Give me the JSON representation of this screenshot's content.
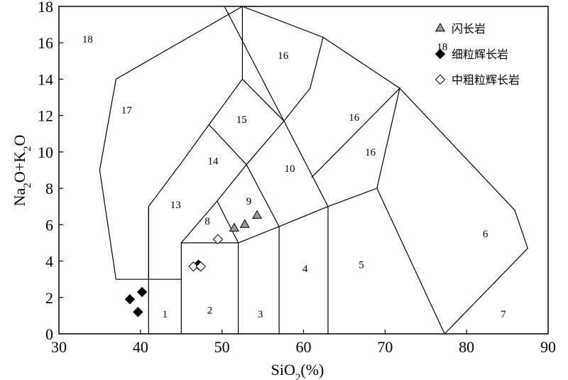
{
  "chart_data": {
    "type": "scatter",
    "xlabel": "SiO2(%)",
    "ylabel": "Na2O+K2O",
    "xlim": [
      30,
      90
    ],
    "ylim": [
      0,
      18
    ],
    "x_ticks": [
      30,
      40,
      50,
      60,
      70,
      80,
      90
    ],
    "y_ticks": [
      0,
      2,
      4,
      6,
      8,
      10,
      12,
      14,
      16,
      18
    ],
    "grid": false,
    "legend_position": "top-right",
    "fields": [
      {
        "label": "1",
        "at": [
          43,
          1.1
        ]
      },
      {
        "label": "2",
        "at": [
          48.5,
          1.3
        ]
      },
      {
        "label": "3",
        "at": [
          54.7,
          1.1
        ]
      },
      {
        "label": "4",
        "at": [
          60.2,
          3.6
        ]
      },
      {
        "label": "5",
        "at": [
          67.1,
          3.8
        ]
      },
      {
        "label": "6",
        "at": [
          82.3,
          5.5
        ]
      },
      {
        "label": "7",
        "at": [
          84.5,
          1.1
        ]
      },
      {
        "label": "8",
        "at": [
          48.2,
          6.2
        ]
      },
      {
        "label": "9",
        "at": [
          53.3,
          7.3
        ]
      },
      {
        "label": "10",
        "at": [
          58.3,
          9.1
        ]
      },
      {
        "label": "13",
        "at": [
          44.3,
          7.1
        ]
      },
      {
        "label": "14",
        "at": [
          48.9,
          9.5
        ]
      },
      {
        "label": "15",
        "at": [
          52.4,
          11.8
        ]
      },
      {
        "label": "16",
        "at": [
          57.5,
          15.3
        ]
      },
      {
        "label": "16",
        "at": [
          66.2,
          11.9
        ]
      },
      {
        "label": "16",
        "at": [
          68.2,
          10.0
        ]
      },
      {
        "label": "17",
        "at": [
          38.3,
          12.3
        ]
      },
      {
        "label": "18",
        "at": [
          33.5,
          16.2
        ]
      },
      {
        "label": "18",
        "at": [
          77.0,
          15.8
        ]
      }
    ],
    "boundaries": [
      [
        [
          41,
          0
        ],
        [
          41,
          7
        ],
        [
          45,
          9.4
        ],
        [
          48.4,
          11.5
        ],
        [
          52.5,
          14
        ],
        [
          57.6,
          11.7
        ],
        [
          63,
          7
        ],
        [
          63,
          0
        ]
      ],
      [
        [
          45,
          0
        ],
        [
          45,
          5
        ],
        [
          52,
          5
        ],
        [
          52,
          0
        ]
      ],
      [
        [
          45,
          5
        ],
        [
          49.4,
          7.3
        ],
        [
          53,
          9.3
        ],
        [
          57.6,
          11.7
        ]
      ],
      [
        [
          52,
          5
        ],
        [
          57,
          5.9
        ],
        [
          63,
          7
        ],
        [
          69,
          8
        ],
        [
          71.8,
          13.5
        ],
        [
          61,
          8.6
        ]
      ],
      [
        [
          57,
          0
        ],
        [
          57,
          5.9
        ]
      ],
      [
        [
          49.4,
          7.3
        ],
        [
          52,
          5
        ]
      ],
      [
        [
          53,
          9.3
        ],
        [
          57,
          5.9
        ]
      ],
      [
        [
          48.4,
          11.5
        ],
        [
          53,
          9.3
        ]
      ],
      [
        [
          52.5,
          14
        ],
        [
          52.5,
          18
        ]
      ],
      [
        [
          57.6,
          11.7
        ],
        [
          50.3,
          18
        ]
      ],
      [
        [
          69,
          8
        ],
        [
          77.3,
          0
        ]
      ],
      [
        [
          57.6,
          11.7
        ],
        [
          60.8,
          13.5
        ],
        [
          62.4,
          16.3
        ],
        [
          71.8,
          13.5
        ]
      ],
      [
        [
          41,
          7
        ],
        [
          41,
          3
        ],
        [
          45,
          3
        ]
      ],
      [
        [
          41,
          3
        ],
        [
          37,
          3
        ],
        [
          35,
          9
        ],
        [
          37,
          14
        ],
        [
          52.5,
          18
        ],
        [
          62.4,
          16.3
        ]
      ],
      [
        [
          71.8,
          13.5
        ],
        [
          85.9,
          6.8
        ],
        [
          87.5,
          4.7
        ],
        [
          77.3,
          0
        ]
      ]
    ],
    "series": [
      {
        "name": "闪长岩",
        "marker": "triangle",
        "fill": "#9a9a9a",
        "points": [
          [
            51.5,
            5.8
          ],
          [
            52.8,
            6.0
          ],
          [
            54.3,
            6.5
          ]
        ]
      },
      {
        "name": "细粒辉长岩",
        "marker": "diamond",
        "fill": "#000000",
        "points": [
          [
            38.7,
            1.9
          ],
          [
            40.2,
            2.3
          ],
          [
            39.7,
            1.2
          ],
          [
            47.1,
            3.8
          ]
        ]
      },
      {
        "name": "中粗粒辉长岩",
        "marker": "diamond-open",
        "fill": "#ffffff",
        "points": [
          [
            49.5,
            5.2
          ],
          [
            46.5,
            3.7
          ],
          [
            47.4,
            3.7
          ]
        ]
      }
    ]
  }
}
